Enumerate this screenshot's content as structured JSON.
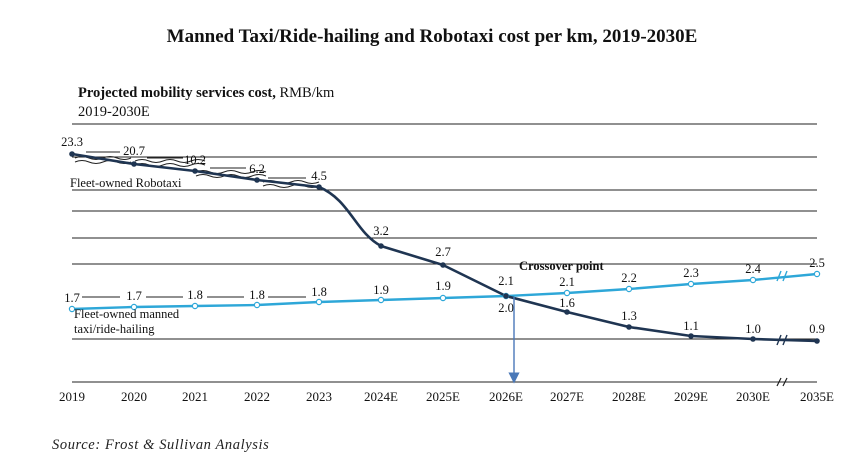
{
  "chart_data": {
    "type": "line",
    "title": "Manned Taxi/Ride-hailing and Robotaxi cost per km, 2019-2030E",
    "subtitle_bold": "Projected mobility services cost,",
    "subtitle_unit": " RMB/km",
    "subtitle_period": "2019-2030E",
    "categories": [
      "2019",
      "2020",
      "2021",
      "2022",
      "2023",
      "2024E",
      "2025E",
      "2026E",
      "2027E",
      "2028E",
      "2029E",
      "2030E",
      "2035E"
    ],
    "series": [
      {
        "name": "Fleet-owned Robotaxi",
        "color": "#1f3552",
        "values": [
          23.3,
          20.7,
          10.2,
          6.2,
          4.5,
          3.2,
          2.7,
          2.0,
          1.6,
          1.3,
          1.1,
          1.0,
          0.9
        ],
        "labels": [
          "23.3",
          "20.7",
          "10.2",
          "6.2",
          "4.5",
          "3.2",
          "2.7",
          "2.0",
          "1.6",
          "1.3",
          "1.1",
          "1.0",
          "0.9"
        ]
      },
      {
        "name": "Fleet-owned manned taxi/ride-hailing",
        "name_line1": "Fleet-owned manned",
        "name_line2": "taxi/ride-hailing",
        "color": "#2ea7d8",
        "values": [
          1.7,
          1.7,
          1.8,
          1.8,
          1.8,
          1.9,
          1.9,
          2.1,
          2.1,
          2.2,
          2.3,
          2.4,
          2.5
        ],
        "labels": [
          "1.7",
          "1.7",
          "1.8",
          "1.8",
          "1.8",
          "1.9",
          "1.9",
          "2.1",
          "2.1",
          "2.2",
          "2.3",
          "2.4",
          "2.5"
        ]
      }
    ],
    "annotations": {
      "crossover": "Crossover point"
    },
    "grid": true,
    "scale": "broken (non-linear)"
  },
  "source": "Source: Frost & Sullivan Analysis"
}
